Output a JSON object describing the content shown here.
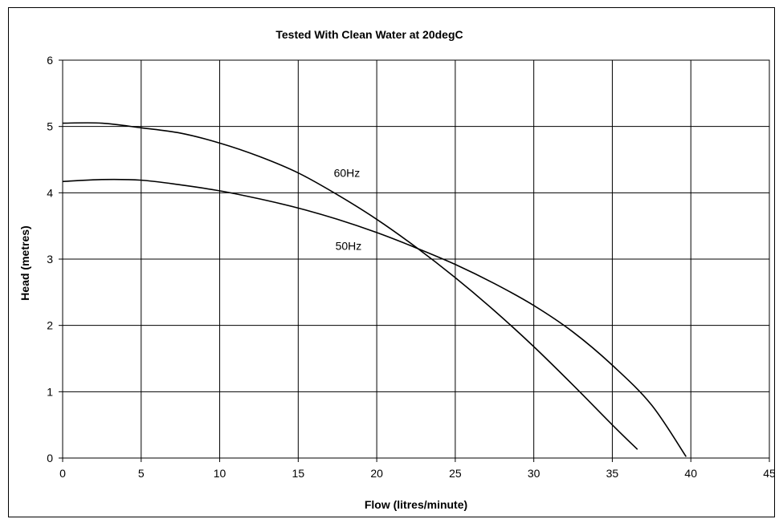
{
  "chart_data": {
    "type": "line",
    "title": "Tested With Clean Water at 20degC",
    "xlabel": "Flow (litres/minute)",
    "ylabel": "Head (metres)",
    "xlim": [
      0,
      45
    ],
    "ylim": [
      0,
      6
    ],
    "xticks": [
      0,
      5,
      10,
      15,
      20,
      25,
      30,
      35,
      40,
      45
    ],
    "yticks": [
      0,
      1,
      2,
      3,
      4,
      5,
      6
    ],
    "grid": true,
    "legend": "none",
    "series": [
      {
        "name": "60Hz",
        "x": [
          0,
          2.5,
          5,
          7.5,
          10,
          12.5,
          15,
          17.5,
          20,
          22.5,
          25,
          27.5,
          30,
          32.5,
          35,
          36.6
        ],
        "y": [
          5.05,
          5.05,
          4.98,
          4.9,
          4.75,
          4.55,
          4.3,
          3.97,
          3.6,
          3.18,
          2.72,
          2.22,
          1.68,
          1.1,
          0.5,
          0.13
        ]
      },
      {
        "name": "50Hz",
        "x": [
          0,
          2.5,
          5,
          7.5,
          10,
          12.5,
          15,
          17.5,
          20,
          22.5,
          25,
          27.5,
          30,
          32.5,
          35,
          37.5,
          39.7
        ],
        "y": [
          4.17,
          4.2,
          4.19,
          4.12,
          4.03,
          3.91,
          3.77,
          3.6,
          3.4,
          3.17,
          2.92,
          2.63,
          2.3,
          1.9,
          1.4,
          0.8,
          0.02
        ]
      }
    ],
    "annotations": [
      {
        "text": "60Hz",
        "x": 18.1,
        "y": 4.3
      },
      {
        "text": "50Hz",
        "x": 18.2,
        "y": 3.2
      }
    ]
  }
}
